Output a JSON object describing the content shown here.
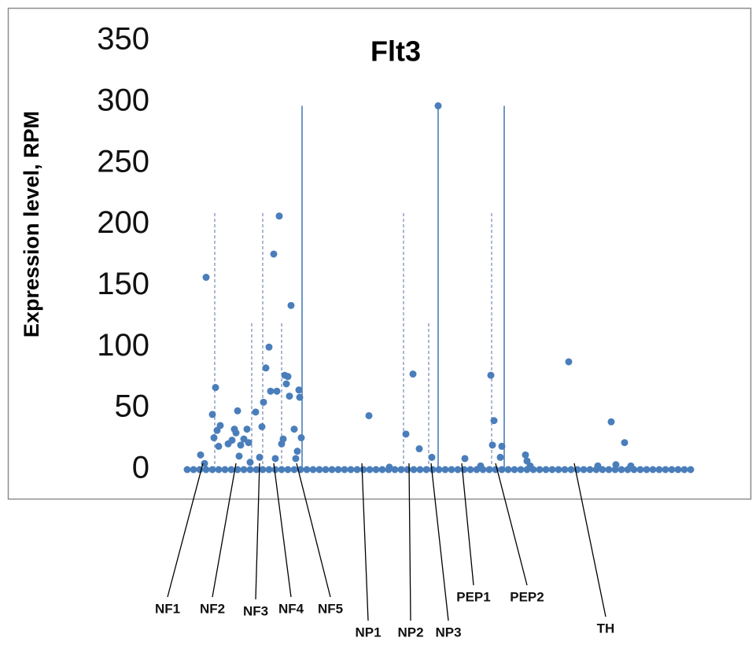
{
  "chart_data": {
    "type": "scatter",
    "title": "Flt3",
    "ylabel": "Expression level, RPM",
    "color": "#4a7ebb",
    "xlim": [
      0,
      660
    ],
    "ylim": [
      0,
      350
    ],
    "yticks": [
      0,
      50,
      100,
      150,
      200,
      250,
      300,
      350
    ],
    "grid": false,
    "x": [
      8,
      16,
      24,
      32,
      40,
      48,
      56,
      64,
      72,
      80,
      88,
      96,
      104,
      112,
      120,
      128,
      136,
      144,
      152,
      160,
      168,
      176,
      184,
      192,
      200,
      208,
      216,
      224,
      232,
      240,
      248,
      256,
      264,
      272,
      280,
      288,
      296,
      304,
      312,
      320,
      328,
      336,
      344,
      352,
      360,
      368,
      376,
      384,
      392,
      400,
      408,
      416,
      424,
      432,
      440,
      448,
      456,
      464,
      472,
      480,
      488,
      496,
      504,
      512,
      520,
      528,
      536,
      544,
      552,
      560,
      568,
      576,
      584,
      592,
      600,
      608,
      616,
      624,
      632,
      640,
      648,
      25,
      32,
      30,
      40,
      42,
      44,
      46,
      48,
      50,
      60,
      65,
      68,
      70,
      72,
      74,
      76,
      80,
      84,
      86,
      88,
      95,
      100,
      103,
      105,
      108,
      112,
      114,
      118,
      120,
      122,
      125,
      128,
      130,
      132,
      134,
      136,
      140,
      138,
      144,
      146,
      148,
      150,
      151,
      153,
      239,
      265,
      286,
      295,
      303,
      319,
      327,
      361,
      381,
      394,
      398,
      396,
      406,
      408,
      438,
      440,
      444,
      493,
      530,
      547,
      553,
      564,
      572
    ],
    "values": [
      0,
      0,
      0,
      0,
      0,
      0,
      0,
      0,
      0,
      0,
      0,
      0,
      0,
      0,
      0,
      0,
      0,
      0,
      0,
      0,
      0,
      0,
      0,
      0,
      0,
      0,
      0,
      0,
      0,
      0,
      0,
      0,
      0,
      0,
      0,
      0,
      0,
      0,
      0,
      0,
      0,
      0,
      0,
      0,
      0,
      0,
      0,
      0,
      0,
      0,
      0,
      0,
      0,
      0,
      0,
      0,
      0,
      0,
      0,
      0,
      0,
      0,
      0,
      0,
      0,
      0,
      0,
      0,
      0,
      0,
      0,
      0,
      0,
      0,
      0,
      0,
      0,
      0,
      0,
      0,
      0,
      12,
      157,
      5,
      45,
      26,
      67,
      32,
      19,
      36,
      21,
      24,
      33,
      30,
      48,
      11,
      20,
      25,
      33,
      22,
      6,
      47,
      10,
      35,
      55,
      83,
      100,
      64,
      176,
      9,
      64,
      207,
      21,
      25,
      77,
      70,
      76,
      134,
      60,
      33,
      9,
      15,
      65,
      59,
      26,
      44,
      2,
      29,
      78,
      17,
      10,
      297,
      9,
      3,
      77,
      40,
      20,
      10,
      19,
      12,
      7,
      3,
      88,
      3,
      39,
      4,
      22,
      3
    ],
    "reference_lines": [
      {
        "x": 43,
        "top": 210,
        "style": "dashed"
      },
      {
        "x": 90,
        "top": 120,
        "style": "dashed"
      },
      {
        "x": 104,
        "top": 210,
        "style": "dashed"
      },
      {
        "x": 128,
        "top": 120,
        "style": "dashed"
      },
      {
        "x": 154,
        "top": 297,
        "style": "solid"
      },
      {
        "x": 283,
        "top": 210,
        "style": "dashed"
      },
      {
        "x": 315,
        "top": 120,
        "style": "dashed"
      },
      {
        "x": 327,
        "top": 297,
        "style": "solid"
      },
      {
        "x": 395,
        "top": 210,
        "style": "dashed"
      },
      {
        "x": 411,
        "top": 297,
        "style": "solid"
      }
    ],
    "annotations": [
      {
        "text": "NF1",
        "x": 28
      },
      {
        "text": "NF2",
        "x": 70
      },
      {
        "text": "NF3",
        "x": 100
      },
      {
        "text": "NF4",
        "x": 118
      },
      {
        "text": "NF5",
        "x": 147
      },
      {
        "text": "NP1",
        "x": 230
      },
      {
        "text": "NP2",
        "x": 290
      },
      {
        "text": "NP3",
        "x": 318
      },
      {
        "text": "PEP1",
        "x": 357
      },
      {
        "text": "PEP2",
        "x": 400
      },
      {
        "text": "TH",
        "x": 500
      }
    ]
  }
}
